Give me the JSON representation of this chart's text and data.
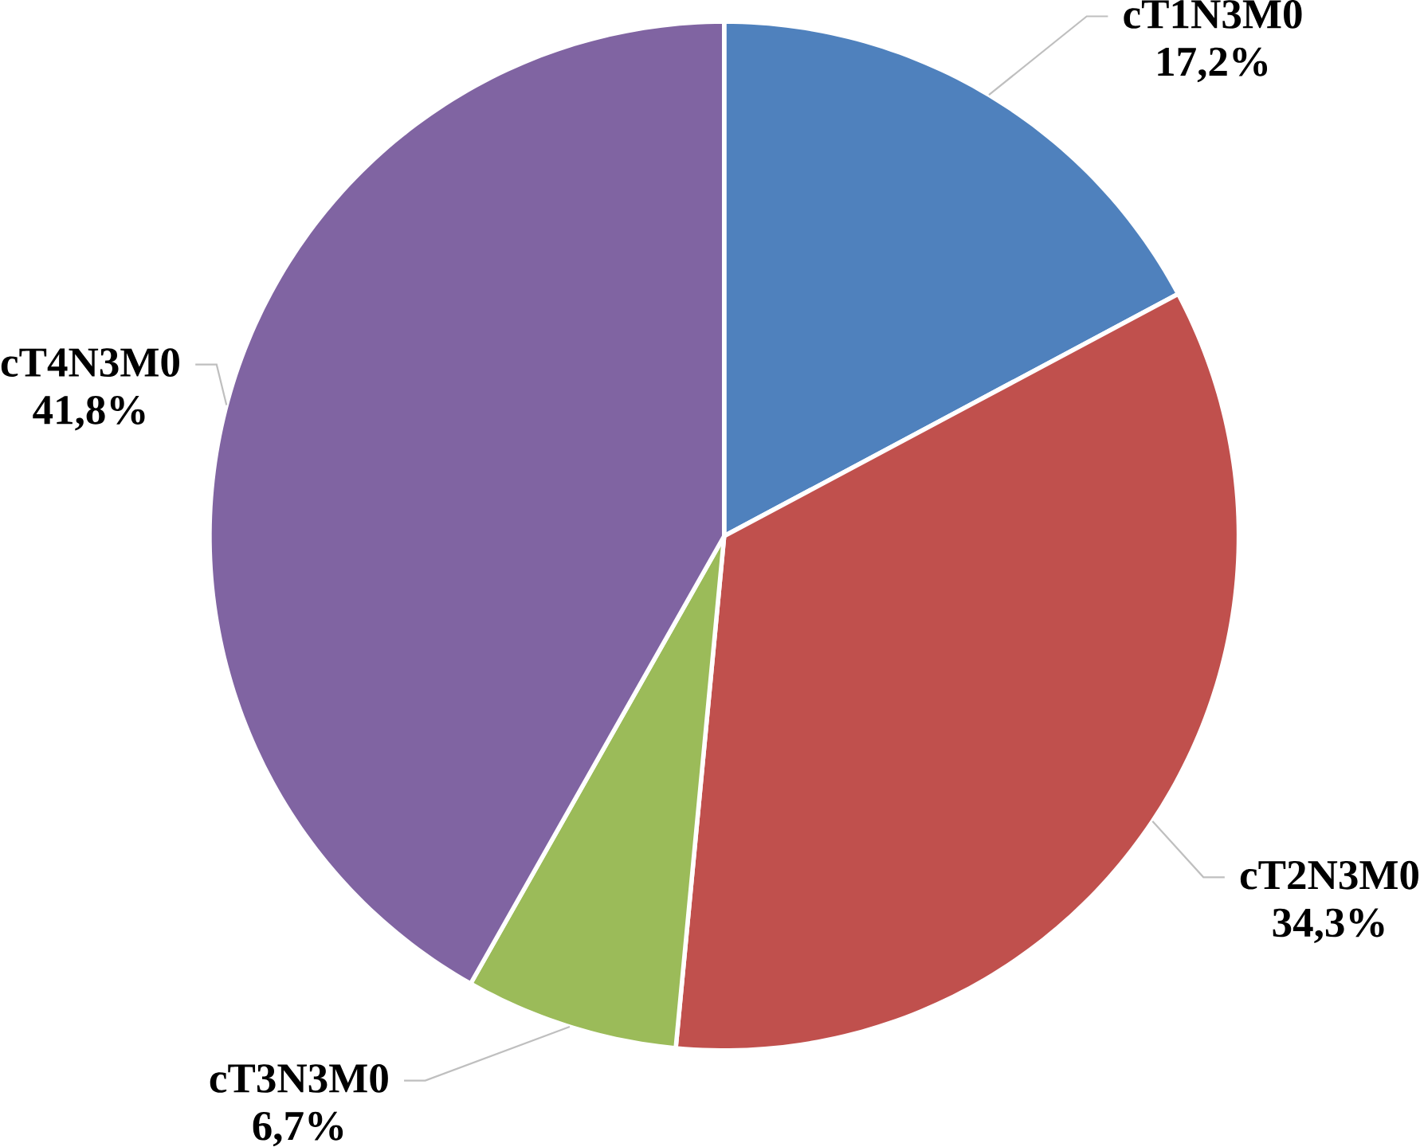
{
  "chart_data": {
    "type": "pie",
    "categories": [
      "cT1N3M0",
      "cT2N3M0",
      "cT3N3M0",
      "cT4N3M0"
    ],
    "values": [
      17.2,
      34.3,
      6.7,
      41.8
    ],
    "colors": [
      "#4f81bd",
      "#c0504d",
      "#9bbb59",
      "#8064a2"
    ],
    "value_labels": [
      "17,2%",
      "34,3%",
      "6,7%",
      "41,8%"
    ]
  }
}
